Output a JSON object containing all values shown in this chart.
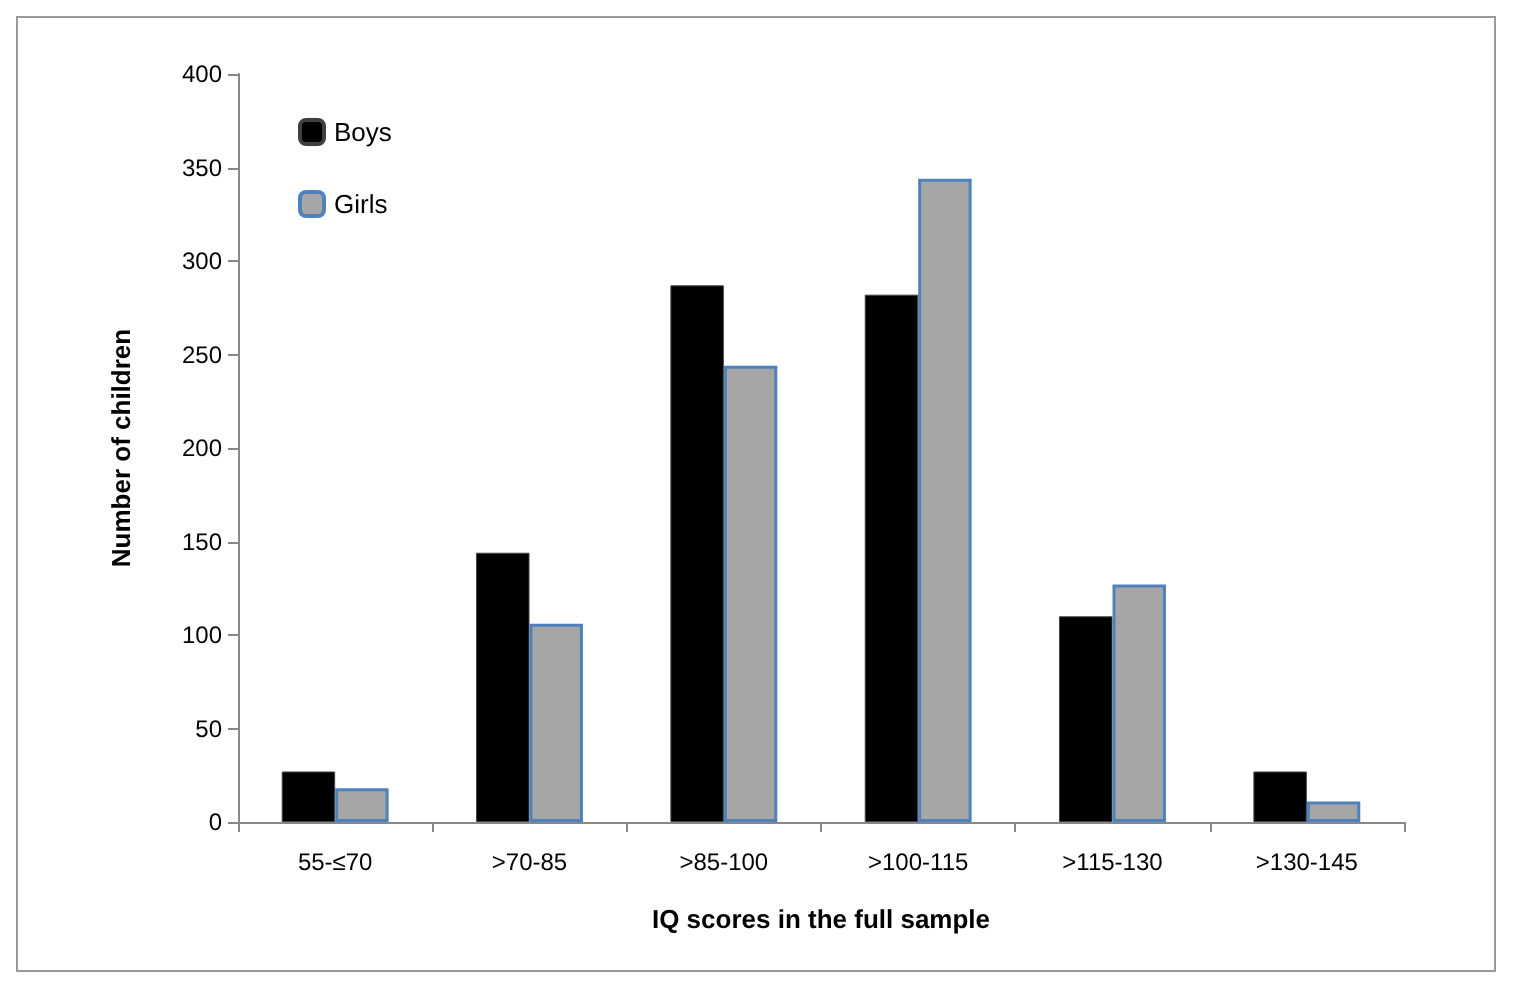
{
  "chart_data": {
    "type": "bar",
    "xlabel": "IQ scores in the full sample",
    "ylabel": "Number of children",
    "categories": [
      "55-≤70",
      ">70-85",
      ">85-100",
      ">100-115",
      ">115-130",
      ">130-145"
    ],
    "series": [
      {
        "name": "Boys",
        "color": "#000000",
        "values": [
          27,
          144,
          287,
          282,
          110,
          27
        ]
      },
      {
        "name": "Girls",
        "color": "#a6a6a6",
        "values": [
          18,
          106,
          244,
          344,
          127,
          11
        ]
      }
    ],
    "ylim": [
      0,
      400
    ],
    "yticks": [
      0,
      50,
      100,
      150,
      200,
      250,
      300,
      350,
      400
    ],
    "grid": false,
    "legend": "top left"
  }
}
